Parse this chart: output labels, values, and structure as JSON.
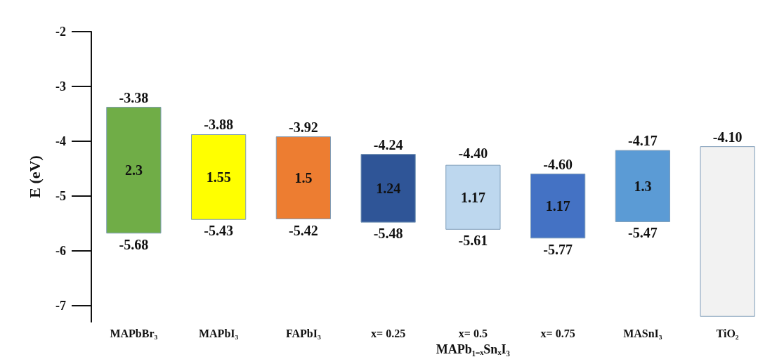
{
  "chart_data": {
    "type": "bar",
    "ylabel": "E (eV)",
    "categories": [
      "MAPbBr₃",
      "MAPbI₃",
      "FAPbI₃",
      "x= 0.25",
      "x= 0.5",
      "x= 0.75",
      "MASnI₃",
      "TiO₂"
    ],
    "base": [
      -5.68,
      -5.43,
      -5.42,
      -5.48,
      -5.61,
      -5.77,
      -5.47,
      -7.2
    ],
    "values": [
      2.3,
      1.55,
      1.5,
      1.24,
      1.17,
      1.17,
      1.3,
      3.1
    ],
    "value_labels": [
      "2.3",
      "1.55",
      "1.5",
      "1.24",
      "1.17",
      "1.17",
      "1.3",
      null
    ],
    "colors": [
      "#70ad47",
      "#ffff00",
      "#ed7d31",
      "#2f5597",
      "#bdd7ee",
      "#4472c4",
      "#5b9bd5",
      "#f2f2f2"
    ],
    "ylim": [
      -7.3,
      -2
    ],
    "yticks": [
      -2,
      -3,
      -4,
      -5,
      -6,
      -7
    ],
    "grid": false,
    "annotations": [
      {
        "text": "-3.38",
        "x": "MAPbBr₃",
        "y": -3.38
      },
      {
        "text": "-5.68",
        "x": "MAPbBr₃",
        "y": -5.68
      },
      {
        "text": "-3.88",
        "x": "MAPbI₃",
        "y": -3.88
      },
      {
        "text": "-5.43",
        "x": "MAPbI₃",
        "y": -5.43
      },
      {
        "text": "-3.92",
        "x": "FAPbI₃",
        "y": -3.92
      },
      {
        "text": "-5.42",
        "x": "FAPbI₃",
        "y": -5.42
      },
      {
        "text": "-4.24",
        "x": "x= 0.25",
        "y": -4.24
      },
      {
        "text": "-5.48",
        "x": "x= 0.25",
        "y": -5.48
      },
      {
        "text": "-4.40",
        "x": "x= 0.5",
        "y": -4.4
      },
      {
        "text": "-5.61",
        "x": "x= 0.5",
        "y": -5.61
      },
      {
        "text": "-4.60",
        "x": "x= 0.75",
        "y": -4.6
      },
      {
        "text": "-5.77",
        "x": "x= 0.75",
        "y": -5.77
      },
      {
        "text": "-4.17",
        "x": "MASnI₃",
        "y": -4.17
      },
      {
        "text": "-5.47",
        "x": "MASnI₃",
        "y": -5.47
      },
      {
        "text": "-4.10",
        "x": "TiO₂",
        "y": -4.1
      },
      "MAPb₁₋ₓSnₓI₃"
    ]
  }
}
